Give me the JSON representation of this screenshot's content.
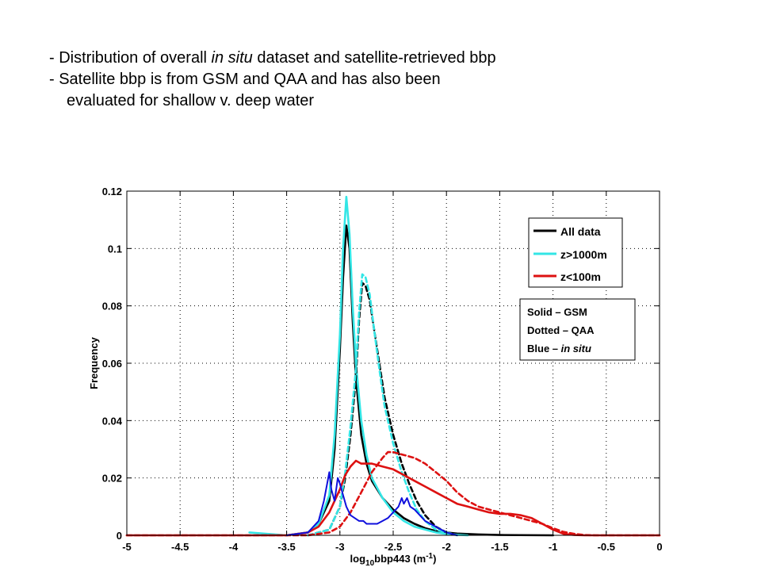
{
  "slide": {
    "bullets": [
      {
        "prefix": "- Distribution of overall ",
        "italic": "in situ",
        "suffix": " dataset and satellite-retrieved bbp"
      },
      {
        "prefix": "- Satellite bbp is from GSM and QAA and has also been",
        "italic": "",
        "suffix": ""
      },
      {
        "prefix": "evaluated for shallow v. deep water",
        "italic": "",
        "suffix": ""
      }
    ]
  },
  "chart_data": {
    "type": "line",
    "title": "",
    "xlabel": "log10bbp443 (m-1)",
    "xlabel_parts": {
      "base": "log",
      "sub": "10",
      "mid": "bbp443 (m",
      "sup": "-1",
      "end": ")"
    },
    "ylabel": "Frequency",
    "xlim": [
      -5,
      0
    ],
    "ylim": [
      0,
      0.12
    ],
    "xticks": [
      -5,
      -4.5,
      -4,
      -3.5,
      -3,
      -2.5,
      -2,
      -1.5,
      -1,
      -0.5,
      0
    ],
    "xtick_labels": [
      "-5",
      "-4.5",
      "-4",
      "-3.5",
      "-3",
      "-2.5",
      "-2",
      "-1.5",
      "-1",
      "-0.5",
      "0"
    ],
    "yticks": [
      0,
      0.02,
      0.04,
      0.06,
      0.08,
      0.1,
      0.12
    ],
    "ytick_labels": [
      "0",
      "0.02",
      "0.04",
      "0.06",
      "0.08",
      "0.1",
      "0.12"
    ],
    "grid": true,
    "legend": {
      "placement": "top-right",
      "entries": [
        {
          "label": "All data",
          "color": "#000000"
        },
        {
          "label": "z>1000m",
          "color": "#33e6e6"
        },
        {
          "label": "z<100m",
          "color": "#dd1111"
        }
      ]
    },
    "note": [
      "Solid – GSM",
      "Dotted – QAA",
      "Blue – in situ"
    ],
    "series": [
      {
        "algorithm": "GSM",
        "subset": "All data",
        "color": "#000000",
        "dash": "solid",
        "x": [
          -3.5,
          -3.3,
          -3.2,
          -3.1,
          -3.05,
          -3.0,
          -2.97,
          -2.94,
          -2.91,
          -2.88,
          -2.85,
          -2.8,
          -2.75,
          -2.7,
          -2.6,
          -2.5,
          -2.4,
          -2.3,
          -2.2,
          -2.1,
          -2.0,
          -1.9,
          -1.7,
          -1.5,
          -1.0
        ],
        "y": [
          0,
          0.001,
          0.004,
          0.012,
          0.03,
          0.065,
          0.09,
          0.108,
          0.1,
          0.075,
          0.055,
          0.035,
          0.025,
          0.019,
          0.013,
          0.009,
          0.006,
          0.004,
          0.0025,
          0.0015,
          0.001,
          0.0006,
          0.0003,
          0.0001,
          0
        ]
      },
      {
        "algorithm": "GSM",
        "subset": "z>1000m",
        "color": "#33e6e6",
        "dash": "solid",
        "x": [
          -3.85,
          -3.5,
          -3.3,
          -3.2,
          -3.1,
          -3.05,
          -3.0,
          -2.97,
          -2.94,
          -2.91,
          -2.88,
          -2.85,
          -2.8,
          -2.75,
          -2.7,
          -2.6,
          -2.5,
          -2.4,
          -2.3,
          -2.2,
          -2.1,
          -2.0,
          -1.9,
          -1.8
        ],
        "y": [
          0.001,
          0,
          0.001,
          0.004,
          0.014,
          0.035,
          0.07,
          0.1,
          0.118,
          0.105,
          0.08,
          0.06,
          0.04,
          0.028,
          0.02,
          0.013,
          0.008,
          0.005,
          0.003,
          0.002,
          0.001,
          0.0005,
          0.0002,
          0
        ]
      },
      {
        "algorithm": "QAA",
        "subset": "All data",
        "color": "#000000",
        "dash": "dotted",
        "x": [
          -3.3,
          -3.1,
          -3.0,
          -2.95,
          -2.9,
          -2.85,
          -2.82,
          -2.79,
          -2.76,
          -2.72,
          -2.68,
          -2.63,
          -2.58,
          -2.5,
          -2.42,
          -2.35,
          -2.28,
          -2.2,
          -2.1,
          -2.0,
          -1.9
        ],
        "y": [
          0,
          0.002,
          0.01,
          0.02,
          0.035,
          0.055,
          0.075,
          0.088,
          0.087,
          0.082,
          0.072,
          0.06,
          0.048,
          0.035,
          0.025,
          0.018,
          0.012,
          0.007,
          0.003,
          0.001,
          0
        ]
      },
      {
        "algorithm": "QAA",
        "subset": "z>1000m",
        "color": "#33e6e6",
        "dash": "dotted",
        "x": [
          -3.3,
          -3.1,
          -3.0,
          -2.95,
          -2.9,
          -2.85,
          -2.82,
          -2.79,
          -2.76,
          -2.72,
          -2.68,
          -2.63,
          -2.58,
          -2.5,
          -2.42,
          -2.35,
          -2.28,
          -2.2,
          -2.1,
          -2.0,
          -1.9
        ],
        "y": [
          0,
          0.002,
          0.01,
          0.022,
          0.038,
          0.058,
          0.078,
          0.091,
          0.09,
          0.084,
          0.072,
          0.058,
          0.045,
          0.032,
          0.022,
          0.015,
          0.009,
          0.005,
          0.002,
          0.001,
          0
        ]
      },
      {
        "algorithm": "GSM",
        "subset": "z<100m",
        "color": "#dd1111",
        "dash": "solid",
        "x": [
          -5,
          -3.5,
          -3.3,
          -3.2,
          -3.1,
          -3.05,
          -3.0,
          -2.95,
          -2.9,
          -2.85,
          -2.8,
          -2.7,
          -2.6,
          -2.5,
          -2.4,
          -2.3,
          -2.2,
          -2.1,
          -2.0,
          -1.9,
          -1.8,
          -1.7,
          -1.6,
          -1.5,
          -1.4,
          -1.3,
          -1.2,
          -1.1,
          -1.0,
          -0.9,
          -0.8,
          -0.7,
          0
        ],
        "y": [
          0,
          0,
          0.001,
          0.003,
          0.008,
          0.012,
          0.016,
          0.021,
          0.024,
          0.026,
          0.025,
          0.025,
          0.024,
          0.023,
          0.021,
          0.019,
          0.017,
          0.015,
          0.013,
          0.011,
          0.01,
          0.009,
          0.008,
          0.0075,
          0.0075,
          0.007,
          0.006,
          0.004,
          0.002,
          0.0005,
          0.0001,
          0,
          0
        ]
      },
      {
        "algorithm": "QAA",
        "subset": "z<100m",
        "color": "#dd1111",
        "dash": "dotted",
        "x": [
          -5,
          -3.3,
          -3.1,
          -3.0,
          -2.9,
          -2.8,
          -2.7,
          -2.6,
          -2.55,
          -2.5,
          -2.4,
          -2.3,
          -2.2,
          -2.1,
          -2.0,
          -1.9,
          -1.8,
          -1.7,
          -1.6,
          -1.5,
          -1.4,
          -1.3,
          -1.2,
          -1.1,
          -1.0,
          -0.9,
          -0.8,
          -0.7,
          -0.6,
          0
        ],
        "y": [
          0,
          0,
          0.001,
          0.003,
          0.008,
          0.015,
          0.022,
          0.027,
          0.029,
          0.029,
          0.028,
          0.027,
          0.025,
          0.022,
          0.019,
          0.015,
          0.012,
          0.01,
          0.009,
          0.008,
          0.007,
          0.006,
          0.005,
          0.004,
          0.0025,
          0.0012,
          0.0005,
          0.0001,
          0,
          0
        ]
      },
      {
        "algorithm": "in situ",
        "subset": "All data",
        "color": "#1010dd",
        "dash": "solid",
        "x": [
          -3.5,
          -3.3,
          -3.2,
          -3.15,
          -3.12,
          -3.1,
          -3.08,
          -3.05,
          -3.02,
          -3.0,
          -2.97,
          -2.94,
          -2.9,
          -2.86,
          -2.82,
          -2.78,
          -2.75,
          -2.7,
          -2.65,
          -2.6,
          -2.55,
          -2.5,
          -2.45,
          -2.42,
          -2.4,
          -2.37,
          -2.34,
          -2.3,
          -2.25,
          -2.2,
          -2.15,
          -2.1,
          -2.05,
          -2.0,
          -1.95,
          -1.9
        ],
        "y": [
          0,
          0.001,
          0.005,
          0.012,
          0.018,
          0.022,
          0.016,
          0.012,
          0.02,
          0.018,
          0.014,
          0.01,
          0.007,
          0.006,
          0.005,
          0.005,
          0.004,
          0.004,
          0.004,
          0.005,
          0.006,
          0.008,
          0.01,
          0.013,
          0.011,
          0.013,
          0.01,
          0.009,
          0.007,
          0.005,
          0.004,
          0.003,
          0.002,
          0.001,
          0.0005,
          0
        ]
      }
    ]
  }
}
